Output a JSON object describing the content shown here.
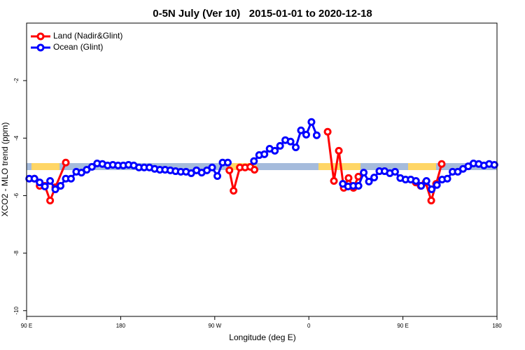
{
  "chart_data": {
    "type": "line",
    "title": "0-5N July (Ver 10)   2015-01-01 to 2020-12-18",
    "x_label": "Longitude (deg E)",
    "y_label": "XCO2 - MLO trend (ppm)",
    "xlim": [
      90,
      540
    ],
    "xticks": [
      {
        "value": 90,
        "label": "90 E"
      },
      180,
      {
        "value": 270,
        "label": "90 W"
      },
      {
        "value": 360,
        "label": "0"
      },
      {
        "value": 450,
        "label": "90 E"
      },
      {
        "value": 540,
        "label": "180"
      }
    ],
    "ylim": [
      -10.2,
      0
    ],
    "yticks": [
      -2,
      -4,
      -6,
      -8,
      -10
    ],
    "legend": "top-left",
    "series": [
      {
        "name": "Land (Nadir&Glint)",
        "color": "#ff0000",
        "x": [
          97.5,
          102.5,
          107.5,
          112.5,
          117.5,
          127.5,
          null,
          284,
          288,
          294,
          299,
          304,
          308,
          null,
          378,
          384,
          388.7,
          393.4,
          398,
          402.7,
          407.4,
          null,
          462.3,
          467,
          471.7,
          477.1,
          481.8,
          487.1
        ],
        "values": [
          -5.41,
          -5.66,
          -5.66,
          -6.17,
          -5.71,
          -4.85,
          null,
          -5.12,
          -5.83,
          -5.02,
          -5.02,
          -5.0,
          -5.1,
          null,
          -3.78,
          -5.49,
          -4.44,
          -5.73,
          -5.39,
          -5.73,
          -5.34,
          null,
          -5.54,
          -5.66,
          -5.54,
          -6.17,
          -5.59,
          -4.9
        ]
      },
      {
        "name": "Ocean (Glint)",
        "color": "#0000ff",
        "x": [
          92.5,
          97.5,
          102.5,
          107.5,
          112.5,
          117.5,
          122.5,
          127.5,
          132.5,
          137.5,
          142.5,
          147.5,
          152.5,
          157.5,
          162.5,
          167.5,
          172.5,
          177.5,
          182.5,
          187.5,
          192.5,
          197.5,
          202.5,
          207.5,
          212.5,
          217.5,
          222.5,
          227.5,
          232.5,
          237.5,
          242.5,
          247.5,
          252.5,
          257.5,
          262.5,
          267.5,
          272.5,
          277.5,
          282.5,
          287.5,
          292.5,
          297.5,
          302.5,
          307.5,
          312.5,
          317.5,
          322.5,
          327.5,
          332.5,
          337.5,
          342.5,
          347.5,
          352.5,
          357.5,
          362.5,
          367.5,
          372.5,
          377.5,
          382.5,
          387.5,
          392.5,
          397.5,
          402.5,
          407.5,
          412.5,
          417.5,
          422.5,
          427.5,
          432.5,
          437.5,
          442.5,
          447.5,
          452.5,
          457.5,
          462.5,
          467.5,
          472.5,
          477.5,
          482.5,
          487.5,
          492.5,
          497.5,
          502.5,
          507.5,
          512.5,
          517.5,
          522.5,
          527.5,
          532.5,
          537.5
        ],
        "values": [
          -5.41,
          -5.41,
          -5.54,
          -5.68,
          -5.49,
          -5.78,
          -5.66,
          -5.41,
          -5.41,
          -5.17,
          -5.2,
          -5.1,
          -5.0,
          -4.88,
          -4.9,
          -4.95,
          -4.93,
          -4.95,
          -4.95,
          -4.93,
          -4.95,
          -5.02,
          -5.02,
          -5.02,
          -5.07,
          -5.1,
          -5.1,
          -5.12,
          -5.15,
          -5.17,
          -5.17,
          -5.22,
          -5.12,
          -5.2,
          -5.12,
          -5.02,
          -5.32,
          -4.85,
          -4.85,
          null,
          null,
          null,
          null,
          -4.8,
          -4.59,
          -4.56,
          -4.37,
          -4.44,
          -4.27,
          -4.07,
          -4.12,
          -4.32,
          -3.73,
          -3.88,
          -3.44,
          -3.9,
          null,
          null,
          null,
          null,
          -5.59,
          -5.68,
          -5.66,
          -5.66,
          -5.2,
          -5.51,
          -5.37,
          -5.15,
          -5.15,
          -5.22,
          -5.17,
          -5.39,
          -5.44,
          -5.44,
          -5.49,
          -5.66,
          -5.49,
          -5.78,
          -5.63,
          -5.44,
          -5.41,
          -5.17,
          -5.17,
          -5.07,
          -4.98,
          -4.88,
          -4.9,
          -4.95,
          -4.9,
          -4.93
        ]
      }
    ]
  }
}
